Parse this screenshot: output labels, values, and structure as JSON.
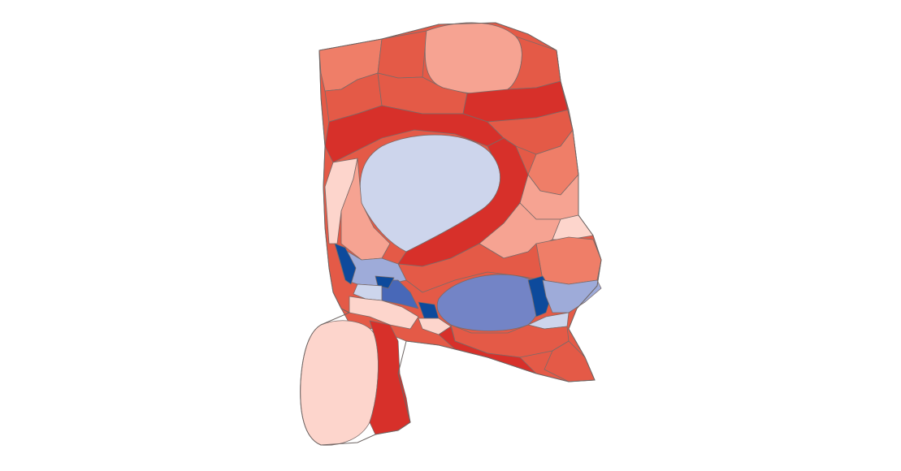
{
  "map": {
    "type": "cartogram-choropleth",
    "legend": null,
    "title": "",
    "palette": {
      "strong_red": "#d7302a",
      "red": "#e45a47",
      "medium_red": "#ef7e68",
      "light_red": "#f6a392",
      "pale_red": "#fdd5cc",
      "pale_blue": "#cdd5ec",
      "light_blue": "#9eabd9",
      "medium_blue": "#7384c6",
      "blue": "#4868b8",
      "strong_blue": "#0d4a9c",
      "border": "#7a6a68"
    }
  }
}
